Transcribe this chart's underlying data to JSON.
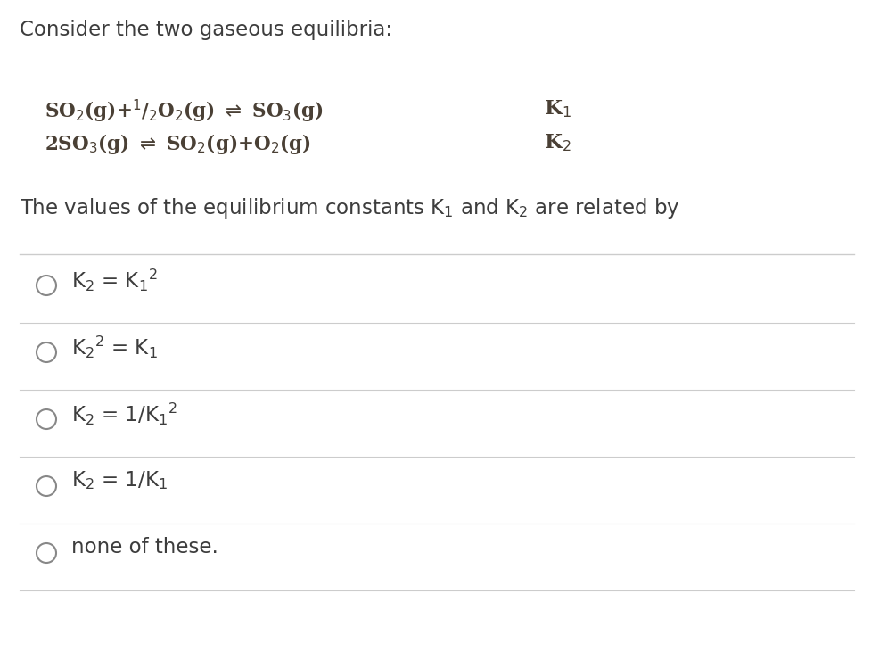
{
  "background_color": "#ffffff",
  "title_text": "Consider the two gaseous equilibria:",
  "title_fontsize": 16.5,
  "eq1_line1": "SO$_2$(g)+$^1$/$_2$O$_2$(g) $\\rightleftharpoons$ SO$_3$(g)",
  "eq1_line2": "2SO$_3$(g) $\\rightleftharpoons$ SO$_2$(g)+O$_2$(g)",
  "k1_label": "K$_1$",
  "k2_label": "K$_2$",
  "question_text": "The values of the equilibrium constants K$_1$ and K$_2$ are related by",
  "question_fontsize": 16.5,
  "eq_fontsize": 15.5,
  "options_mathtext": [
    "K$_2$ = K$_1$$^2$",
    "K$_2$$^2$ = K$_1$",
    "K$_2$ = 1/K$_1$$^2$",
    "K$_2$ = 1/K$_1$",
    "none of these."
  ],
  "option_fontsize": 16.5,
  "divider_color": "#cccccc",
  "text_color": "#3d3d3d",
  "eq_text_color": "#4a4035",
  "circle_color": "#888888",
  "circle_linewidth": 1.5
}
